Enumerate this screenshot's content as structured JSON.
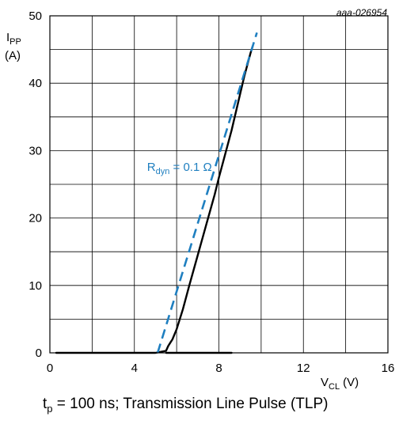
{
  "chart_data": {
    "type": "line",
    "ref_id": "aaa-026954",
    "ylabel": "I",
    "ylabel_sub": "PP",
    "ylabel_unit": "(A)",
    "xlabel": "V",
    "xlabel_sub": "CL",
    "xlabel_unit": "(V)",
    "xlim": [
      0,
      16
    ],
    "ylim": [
      0,
      50
    ],
    "x_ticks": [
      0,
      4,
      8,
      12,
      16
    ],
    "y_ticks": [
      0,
      10,
      20,
      30,
      40,
      50
    ],
    "grid": true,
    "series": [
      {
        "color": "#000000",
        "x": [
          0.3,
          2,
          4,
          5,
          5.5,
          5.6,
          5.7,
          5.8,
          6.0,
          6.3,
          6.6,
          7.0,
          7.4,
          7.8,
          8.0,
          8.3,
          8.6,
          8.9,
          9.2,
          9.5,
          9.6
        ],
        "y": [
          0,
          0,
          0,
          0,
          0.3,
          1.0,
          1.5,
          2.0,
          3.5,
          6.5,
          10,
          14.5,
          19,
          23.5,
          26,
          29.5,
          33,
          37,
          41,
          44.5,
          45.5
        ]
      },
      {
        "color": "#000000",
        "x": [
          5.5,
          6.5,
          7.5,
          8.6
        ],
        "y": [
          0,
          0,
          0,
          0
        ]
      },
      {
        "color": "#1f7fc0",
        "dashed": true,
        "x": [
          5.1,
          9.8
        ],
        "y": [
          0,
          47.5
        ]
      }
    ],
    "annotation": {
      "text": "R",
      "sub": "dyn",
      "rest": " = 0.1 Ω",
      "color": "#1f7fc0",
      "at": [
        4.6,
        27
      ]
    }
  },
  "caption": {
    "t": "t",
    "sub": "p",
    "rest": " = 100 ns; Transmission Line Pulse (TLP)"
  }
}
